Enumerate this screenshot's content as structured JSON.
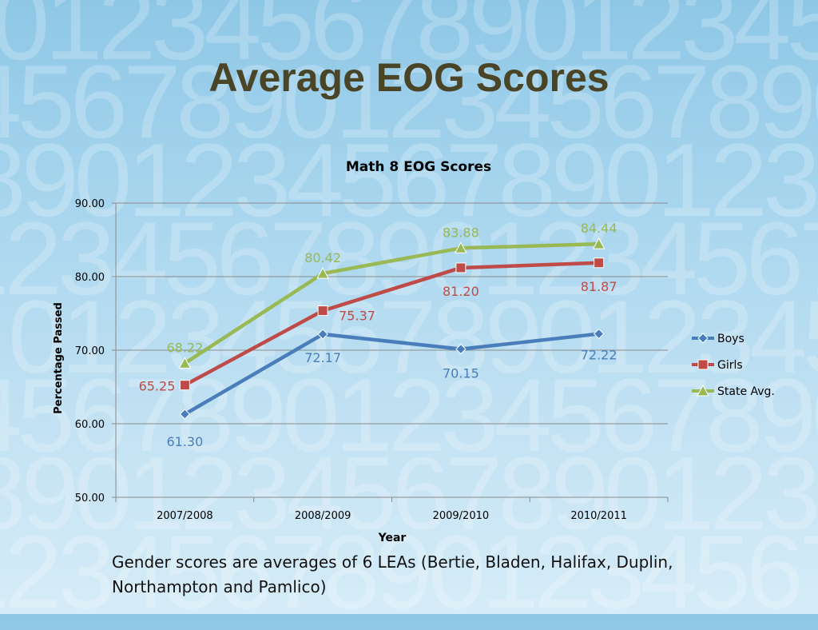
{
  "slide": {
    "title": "Average EOG Scores",
    "caption": "Gender scores are averages of 6 LEAs (Bertie, Bladen, Halifax, Duplin, Northampton and Pamlico)",
    "background_digits": "0123456789012345678901234567890123456789"
  },
  "colors": {
    "title": "#4a4527",
    "boys": "#4a7ebb",
    "girls": "#be4b48",
    "state": "#98b954",
    "grid": "#8a8a8a"
  },
  "chart_data": {
    "type": "line",
    "title": "Math 8 EOG Scores",
    "xlabel": "Year",
    "ylabel": "Percentage Passed",
    "categories": [
      "2007/2008",
      "2008/2009",
      "2009/2010",
      "2010/2011"
    ],
    "ylim": [
      50,
      90
    ],
    "yticks": [
      "50.00",
      "60.00",
      "70.00",
      "80.00",
      "90.00"
    ],
    "grid": true,
    "legend_position": "right",
    "series": [
      {
        "name": "Boys",
        "marker": "diamond",
        "color": "#4a7ebb",
        "values": [
          61.3,
          72.17,
          70.15,
          72.22
        ],
        "labels": [
          "61.30",
          "72.17",
          "70.15",
          "72.22"
        ]
      },
      {
        "name": "Girls",
        "marker": "square",
        "color": "#be4b48",
        "values": [
          65.25,
          75.37,
          81.2,
          81.87
        ],
        "labels": [
          "65.25",
          "75.37",
          "81.20",
          "81.87"
        ]
      },
      {
        "name": "State Avg.",
        "marker": "triangle",
        "color": "#98b954",
        "values": [
          68.22,
          80.42,
          83.88,
          84.44
        ],
        "labels": [
          "68.22",
          "80.42",
          "83.88",
          "84.44"
        ]
      }
    ]
  }
}
